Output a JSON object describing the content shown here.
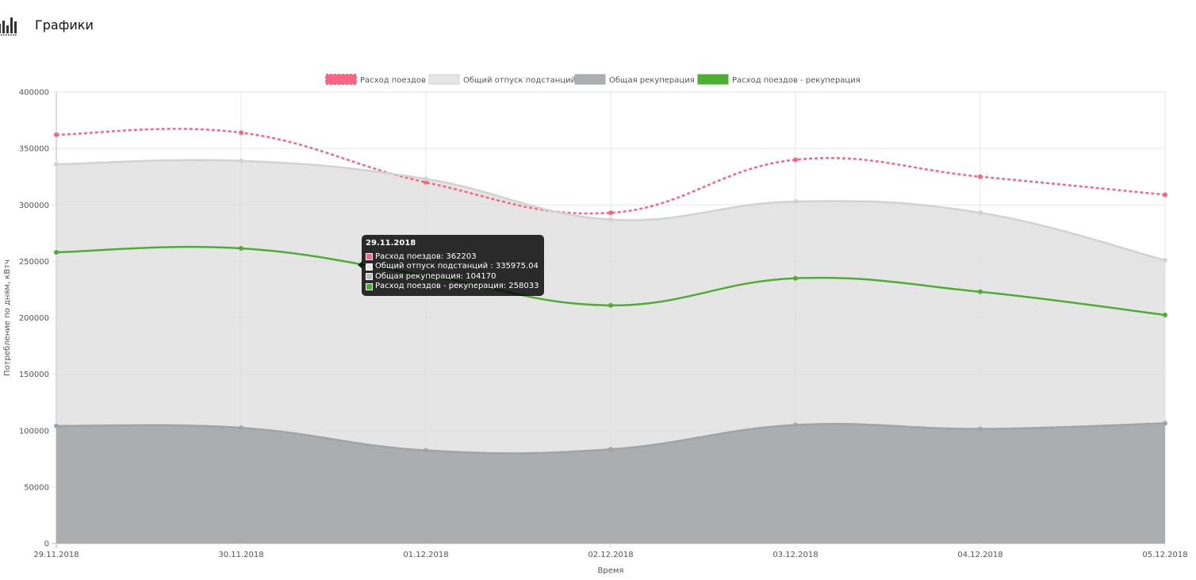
{
  "header": {
    "title": "Графики",
    "icon": "bar-chart-icon"
  },
  "chart_data": {
    "type": "line",
    "title": "",
    "xlabel": "Время",
    "ylabel": "Потребление по дням, кВтч",
    "ylim": [
      0,
      400000
    ],
    "y_ticks": [
      "0",
      "50000",
      "100000",
      "150000",
      "200000",
      "250000",
      "300000",
      "350000",
      "400000"
    ],
    "categories": [
      "29.11.2018",
      "30.11.2018",
      "01.12.2018",
      "02.12.2018",
      "03.12.2018",
      "04.12.2018",
      "05.12.2018"
    ],
    "grid": true,
    "legend_position": "top",
    "series": [
      {
        "name": "Расход поездов",
        "style": "dashed",
        "fill": false,
        "color": "#ff6384",
        "values": [
          362203,
          364000,
          320000,
          293000,
          340000,
          325000,
          309000
        ]
      },
      {
        "name": "Общий отпуск подстанций",
        "style": "solid",
        "fill": true,
        "color": "#d8d8d8",
        "values": [
          335975.04,
          339000,
          323000,
          287000,
          303000,
          293000,
          251000
        ]
      },
      {
        "name": "Общая рекуперация",
        "style": "solid",
        "fill": true,
        "color": "#a6abad",
        "values": [
          104170,
          102500,
          82500,
          83500,
          105000,
          101500,
          106500
        ]
      },
      {
        "name": "Расход поездов - рекуперация",
        "style": "solid",
        "fill": false,
        "color": "#4caf32",
        "values": [
          258033,
          261500,
          237500,
          211000,
          235000,
          223000,
          202500
        ]
      }
    ]
  },
  "tooltip": {
    "title": "29.11.2018",
    "rows": [
      {
        "label": "Расход поездов: 362203",
        "color": "#ff6384"
      },
      {
        "label": "Общий отпуск подстанций : 335975.04",
        "color": "#e6e6e6"
      },
      {
        "label": "Общая рекуперация: 104170",
        "color": "#b8bcbe"
      },
      {
        "label": "Расход поездов - рекуперация: 258033",
        "color": "#4caf32"
      }
    ]
  }
}
